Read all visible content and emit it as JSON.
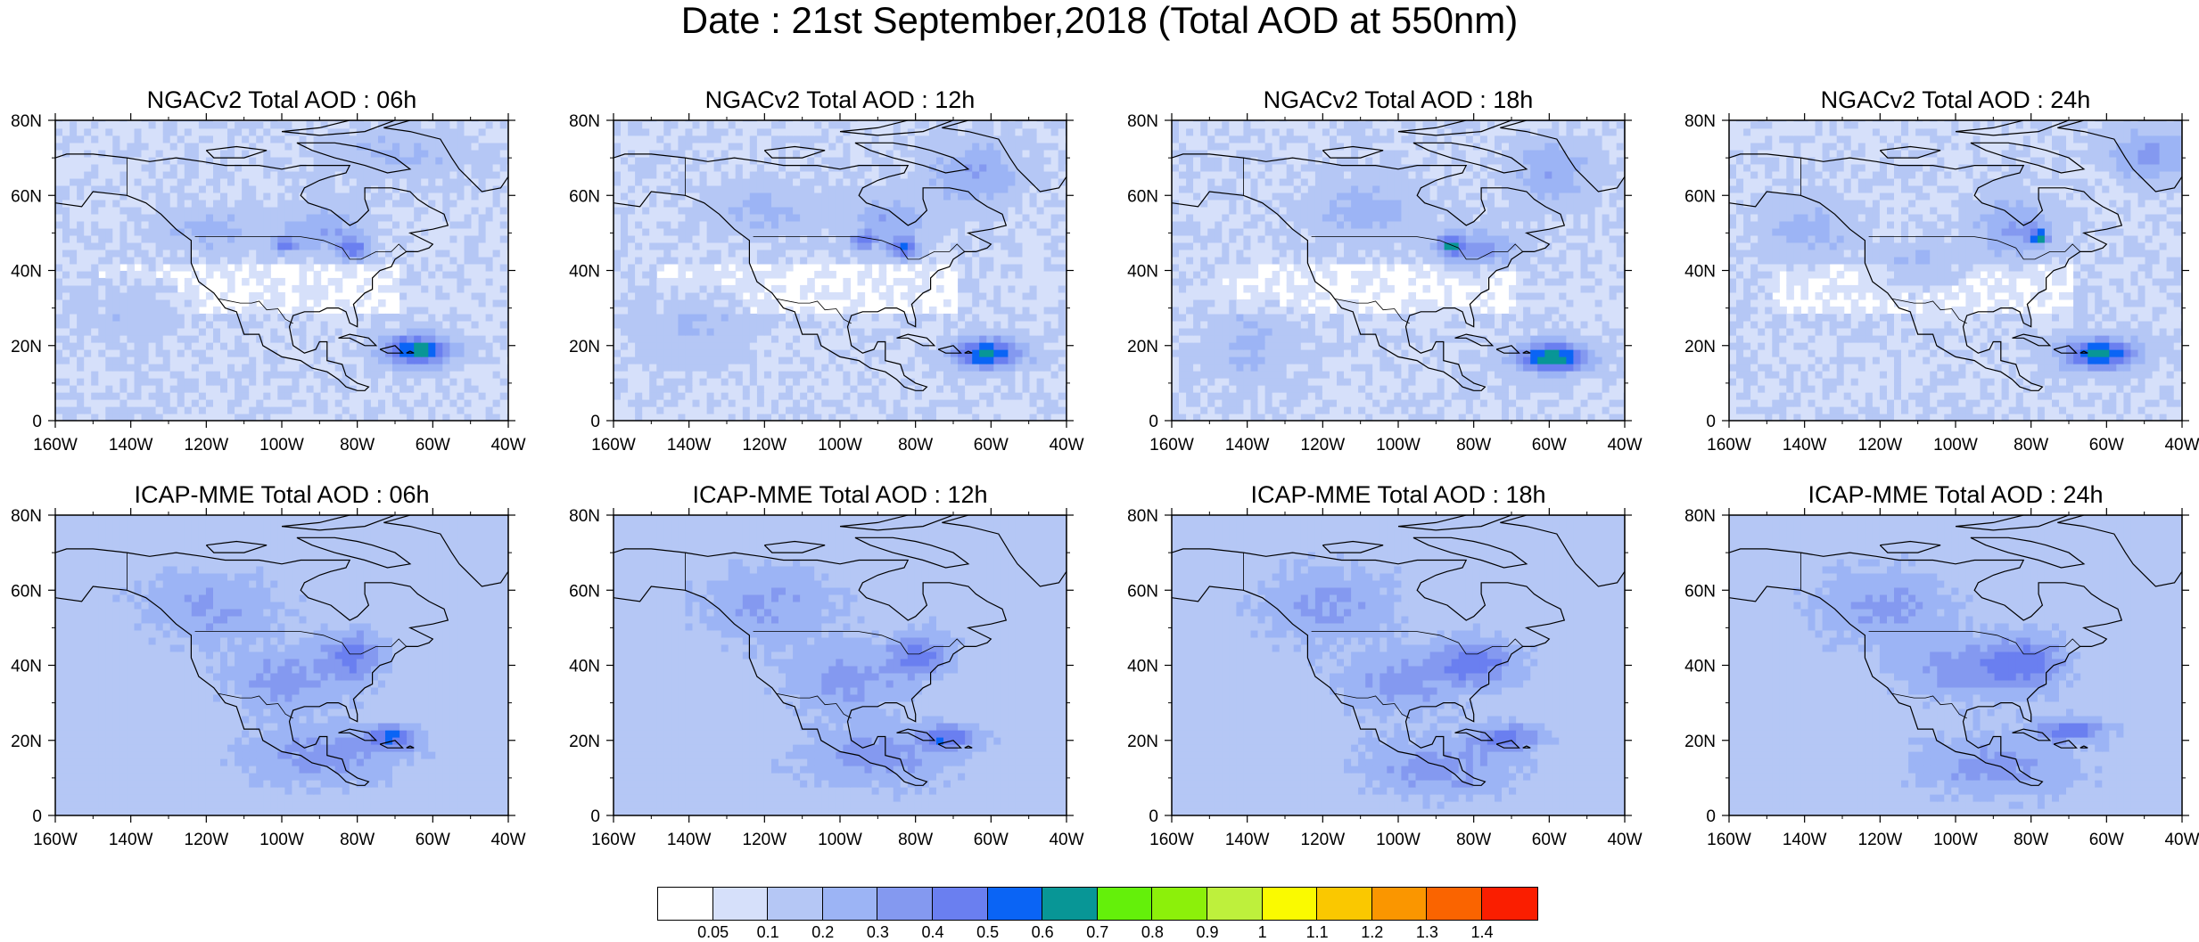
{
  "title": "Date : 21st September,2018 (Total AOD at 550nm)",
  "panels": [
    {
      "title": "NGACv2 Total AOD : 06h",
      "model": "NGACv2",
      "lead": "06h"
    },
    {
      "title": "NGACv2 Total AOD : 12h",
      "model": "NGACv2",
      "lead": "12h"
    },
    {
      "title": "NGACv2 Total AOD : 18h",
      "model": "NGACv2",
      "lead": "18h"
    },
    {
      "title": "NGACv2 Total AOD : 24h",
      "model": "NGACv2",
      "lead": "24h"
    },
    {
      "title": "ICAP-MME Total AOD : 06h",
      "model": "ICAP-MME",
      "lead": "06h"
    },
    {
      "title": "ICAP-MME Total AOD : 12h",
      "model": "ICAP-MME",
      "lead": "12h"
    },
    {
      "title": "ICAP-MME Total AOD : 18h",
      "model": "ICAP-MME",
      "lead": "18h"
    },
    {
      "title": "ICAP-MME Total AOD : 24h",
      "model": "ICAP-MME",
      "lead": "24h"
    }
  ],
  "axes": {
    "lon_ticks": [
      "160W",
      "140W",
      "120W",
      "100W",
      "80W",
      "60W",
      "40W"
    ],
    "lat_ticks": [
      "0",
      "20N",
      "40N",
      "60N",
      "80N"
    ],
    "lon_range": [
      -160,
      -40
    ],
    "lat_range": [
      0,
      80
    ]
  },
  "colorbar": {
    "labels": [
      "0.05",
      "0.1",
      "0.2",
      "0.3",
      "0.4",
      "0.5",
      "0.6",
      "0.7",
      "0.8",
      "0.9",
      "1",
      "1.1",
      "1.2",
      "1.3",
      "1.4"
    ],
    "colors": [
      "#ffffff",
      "#d6e0fa",
      "#b5c7f5",
      "#9cb4f5",
      "#8499f0",
      "#6a7ff0",
      "#0a64f5",
      "#089696",
      "#64f00a",
      "#8cf00a",
      "#bef03c",
      "#fafa00",
      "#fac800",
      "#fa9600",
      "#fa6400",
      "#fa1e00"
    ]
  }
}
